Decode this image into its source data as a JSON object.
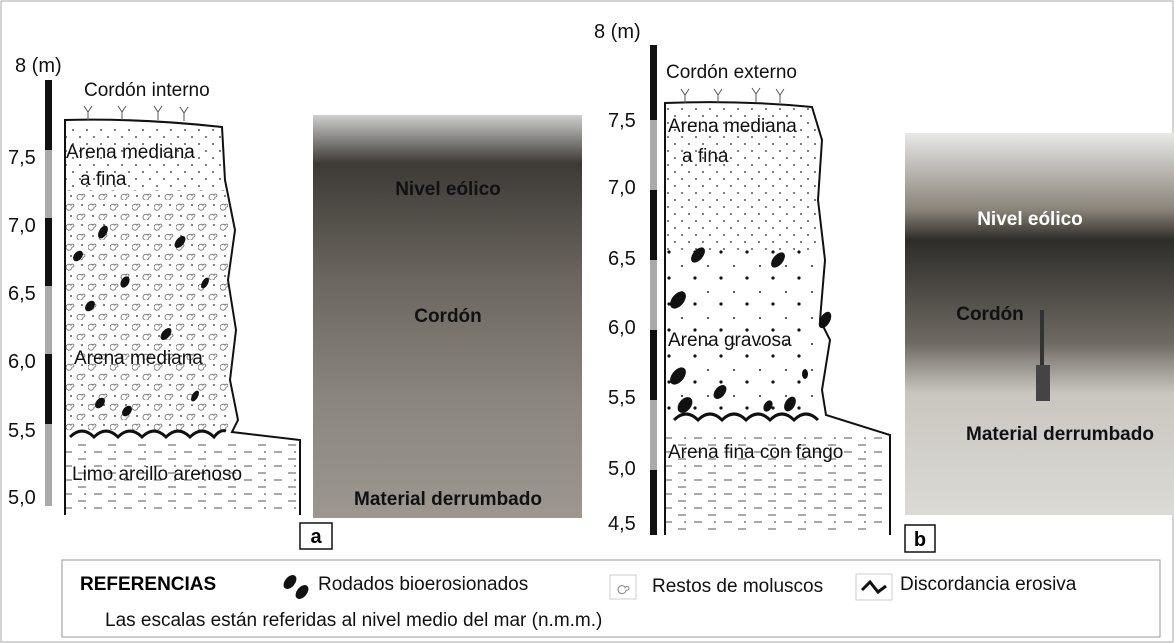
{
  "panel_a": {
    "scale": {
      "unit": "8 (m)",
      "ticks": [
        "7,5",
        "7,0",
        "6,5",
        "6,0",
        "5,5",
        "5,0"
      ]
    },
    "column": {
      "title": "Cordón interno",
      "layers": [
        "Arena mediana",
        "a fina",
        "Arena mediana",
        "Limo arcillo arenoso"
      ]
    },
    "photo": {
      "labels": [
        "Nivel eólico",
        "Cordón",
        "Material derrumbado"
      ]
    },
    "label": "a"
  },
  "panel_b": {
    "scale": {
      "unit": "8 (m)",
      "ticks": [
        "7,5",
        "7,0",
        "6,5",
        "6,0",
        "5,5",
        "5,0",
        "4,5"
      ]
    },
    "column": {
      "title": "Cordón externo",
      "layers": [
        "Arena mediana",
        "a fina",
        "Arena gravosa",
        "Arena fina con fango"
      ]
    },
    "photo": {
      "labels": [
        "Nivel eólico",
        "Cordón",
        "Material derrumbado"
      ]
    },
    "label": "b"
  },
  "legend": {
    "title": "REFERENCIAS",
    "items": [
      "Rodados bioerosionados",
      "Restos de moluscos",
      "Discordancia erosiva"
    ],
    "note": "Las escalas están referidas al nivel medio del mar (n.m.m.)"
  }
}
